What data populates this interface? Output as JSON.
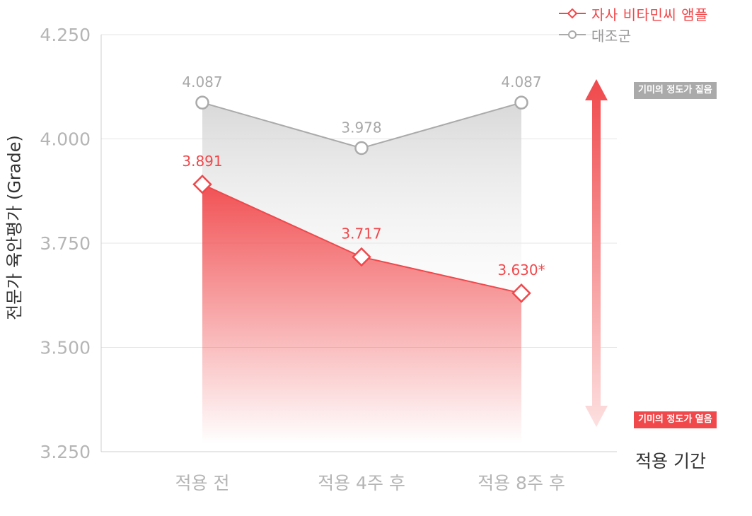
{
  "chart_data": {
    "type": "line",
    "categories": [
      "적용 전",
      "적용 4주 후",
      "적용 8주 후"
    ],
    "ylabel": "전문가 육안평가 (Grade)",
    "xlabel": "적용 기간",
    "ylim": [
      3.25,
      4.25
    ],
    "yticks": [
      "3.250",
      "3.500",
      "3.750",
      "4.000",
      "4.250"
    ],
    "grid": true,
    "legend_position": "top-right",
    "series": [
      {
        "name": "자사 비타민씨 앰플",
        "values": [
          3.891,
          3.717,
          3.63
        ],
        "labels": [
          "3.891",
          "3.717",
          "3.630*"
        ],
        "color": "#f0484b",
        "marker": "diamond"
      },
      {
        "name": "대조군",
        "values": [
          4.087,
          3.978,
          4.087
        ],
        "labels": [
          "4.087",
          "3.978",
          "4.087"
        ],
        "color": "#aaaaaa",
        "marker": "circle"
      }
    ],
    "annotations": {
      "top": "기미의 정도가 짙음",
      "bottom": "기미의 정도가 옅음"
    }
  },
  "colors": {
    "accent": "#f0484b",
    "control": "#aaaaaa",
    "axis_text": "#b5b5b5",
    "top_tag": "#aaaaaa",
    "bottom_tag": "#f0484b"
  }
}
